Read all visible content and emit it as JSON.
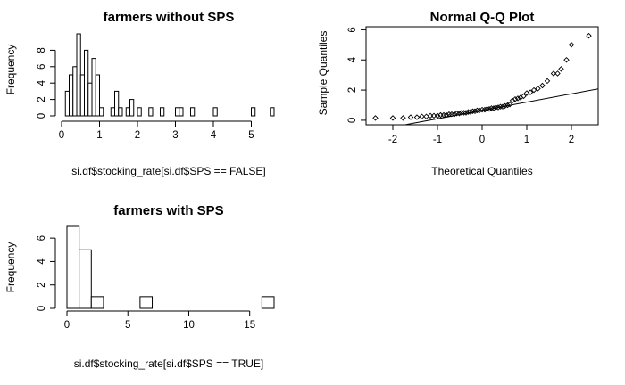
{
  "chart_data": [
    {
      "type": "bar",
      "title": "farmers without SPS",
      "xlabel": "si.df$stocking_rate[si.df$SPS == FALSE]",
      "ylabel": "Frequency",
      "bin_width": 0.1,
      "xlim": [
        0,
        5.6
      ],
      "ylim": [
        0,
        10
      ],
      "xticks": [
        0,
        1,
        2,
        3,
        4,
        5
      ],
      "yticks": [
        0,
        2,
        4,
        6,
        8
      ],
      "bins": [
        {
          "x0": 0.1,
          "count": 3
        },
        {
          "x0": 0.2,
          "count": 5
        },
        {
          "x0": 0.3,
          "count": 6
        },
        {
          "x0": 0.4,
          "count": 10
        },
        {
          "x0": 0.5,
          "count": 5
        },
        {
          "x0": 0.6,
          "count": 8
        },
        {
          "x0": 0.7,
          "count": 4
        },
        {
          "x0": 0.8,
          "count": 7
        },
        {
          "x0": 0.9,
          "count": 5
        },
        {
          "x0": 1.0,
          "count": 1
        },
        {
          "x0": 1.3,
          "count": 1
        },
        {
          "x0": 1.4,
          "count": 3
        },
        {
          "x0": 1.5,
          "count": 1
        },
        {
          "x0": 1.7,
          "count": 1
        },
        {
          "x0": 1.8,
          "count": 2
        },
        {
          "x0": 2.0,
          "count": 1
        },
        {
          "x0": 2.3,
          "count": 1
        },
        {
          "x0": 2.6,
          "count": 1
        },
        {
          "x0": 3.0,
          "count": 1
        },
        {
          "x0": 3.1,
          "count": 1
        },
        {
          "x0": 3.4,
          "count": 1
        },
        {
          "x0": 4.0,
          "count": 1
        },
        {
          "x0": 5.0,
          "count": 1
        },
        {
          "x0": 5.5,
          "count": 1
        }
      ]
    },
    {
      "type": "scatter",
      "title": "Normal Q-Q Plot",
      "xlabel": "Theoretical Quantiles",
      "ylabel": "Sample Quantiles",
      "xlim": [
        -2.6,
        2.6
      ],
      "ylim": [
        -0.3,
        6.2
      ],
      "xticks": [
        -2,
        -1,
        0,
        1,
        2
      ],
      "yticks": [
        0,
        2,
        4,
        6
      ],
      "qq_line": {
        "intercept": 0.65,
        "slope": 0.55
      },
      "points": [
        [
          -2.39,
          0.15
        ],
        [
          -2.0,
          0.15
        ],
        [
          -1.77,
          0.15
        ],
        [
          -1.6,
          0.2
        ],
        [
          -1.46,
          0.2
        ],
        [
          -1.35,
          0.25
        ],
        [
          -1.25,
          0.25
        ],
        [
          -1.16,
          0.3
        ],
        [
          -1.08,
          0.3
        ],
        [
          -1.0,
          0.3
        ],
        [
          -0.93,
          0.35
        ],
        [
          -0.86,
          0.35
        ],
        [
          -0.8,
          0.35
        ],
        [
          -0.74,
          0.4
        ],
        [
          -0.68,
          0.4
        ],
        [
          -0.62,
          0.4
        ],
        [
          -0.57,
          0.45
        ],
        [
          -0.51,
          0.45
        ],
        [
          -0.46,
          0.5
        ],
        [
          -0.41,
          0.5
        ],
        [
          -0.36,
          0.5
        ],
        [
          -0.31,
          0.55
        ],
        [
          -0.26,
          0.55
        ],
        [
          -0.21,
          0.6
        ],
        [
          -0.16,
          0.6
        ],
        [
          -0.11,
          0.65
        ],
        [
          -0.06,
          0.65
        ],
        [
          0.0,
          0.7
        ],
        [
          0.06,
          0.7
        ],
        [
          0.11,
          0.75
        ],
        [
          0.16,
          0.75
        ],
        [
          0.21,
          0.8
        ],
        [
          0.26,
          0.8
        ],
        [
          0.31,
          0.85
        ],
        [
          0.36,
          0.85
        ],
        [
          0.41,
          0.9
        ],
        [
          0.46,
          0.9
        ],
        [
          0.51,
          0.95
        ],
        [
          0.57,
          1.0
        ],
        [
          0.62,
          1.05
        ],
        [
          0.68,
          1.3
        ],
        [
          0.74,
          1.4
        ],
        [
          0.8,
          1.45
        ],
        [
          0.86,
          1.5
        ],
        [
          0.93,
          1.6
        ],
        [
          1.0,
          1.8
        ],
        [
          1.08,
          1.85
        ],
        [
          1.16,
          2.0
        ],
        [
          1.25,
          2.1
        ],
        [
          1.35,
          2.3
        ],
        [
          1.46,
          2.6
        ],
        [
          1.6,
          3.1
        ],
        [
          1.69,
          3.1
        ],
        [
          1.77,
          3.4
        ],
        [
          1.89,
          4.0
        ],
        [
          2.0,
          5.0
        ],
        [
          2.39,
          5.6
        ]
      ]
    },
    {
      "type": "bar",
      "title": "farmers with SPS",
      "xlabel": "si.df$stocking_rate[si.df$SPS == TRUE]",
      "ylabel": "Frequency",
      "bin_width": 1,
      "xlim": [
        0,
        17
      ],
      "ylim": [
        0,
        7
      ],
      "xticks": [
        0,
        5,
        10,
        15
      ],
      "yticks": [
        0,
        2,
        4,
        6
      ],
      "bins": [
        {
          "x0": 0,
          "count": 7
        },
        {
          "x0": 1,
          "count": 5
        },
        {
          "x0": 2,
          "count": 1
        },
        {
          "x0": 6,
          "count": 1
        },
        {
          "x0": 16,
          "count": 1
        }
      ]
    }
  ]
}
